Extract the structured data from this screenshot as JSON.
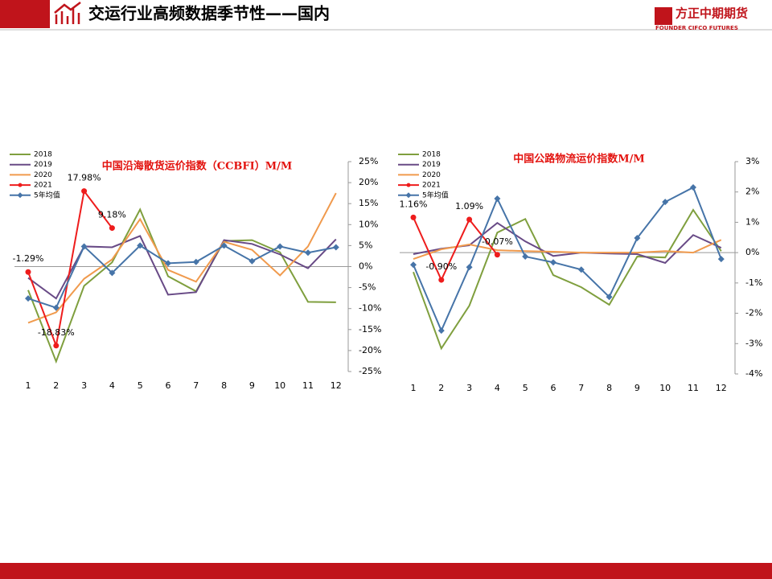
{
  "header": {
    "title": "交运行业高频数据季节性——国内",
    "logo_cn": "方正中期期货",
    "logo_en": "FOUNDER CIFCO FUTURES"
  },
  "chart_data": [
    {
      "type": "line",
      "title": "中国沿海散货运价指数（CCBFI）M/M",
      "categories": [
        "1",
        "2",
        "3",
        "4",
        "5",
        "6",
        "7",
        "8",
        "9",
        "10",
        "11",
        "12"
      ],
      "ylim": [
        -25,
        25
      ],
      "yticks": [
        {
          "value": 25,
          "label": "25%"
        },
        {
          "value": 20,
          "label": "20%"
        },
        {
          "value": 15,
          "label": "15%"
        },
        {
          "value": 10,
          "label": "10%"
        },
        {
          "value": 5,
          "label": "5%"
        },
        {
          "value": 0,
          "label": "0%"
        },
        {
          "value": -5,
          "label": "-5%"
        },
        {
          "value": -10,
          "label": "-10%"
        },
        {
          "value": -15,
          "label": "-15%"
        },
        {
          "value": -20,
          "label": "-20%"
        },
        {
          "value": -25,
          "label": "-25%"
        }
      ],
      "legend": "top-left",
      "series": [
        {
          "name": "2018",
          "color": "#7f9f3e",
          "values": [
            -5.6,
            -22.6,
            -4.6,
            1.0,
            13.6,
            -2.3,
            -5.9,
            6.1,
            6.3,
            3.4,
            -8.4,
            -8.5
          ]
        },
        {
          "name": "2019",
          "color": "#684a86",
          "values": [
            -2.7,
            -7.6,
            4.8,
            4.6,
            7.3,
            -6.7,
            -6.1,
            6.3,
            5.4,
            2.9,
            -0.4,
            6.5
          ]
        },
        {
          "name": "2020",
          "color": "#f09a4d",
          "values": [
            -13.4,
            -10.9,
            -2.9,
            1.7,
            11.3,
            -0.8,
            -3.6,
            5.9,
            4.0,
            -2.1,
            4.8,
            17.5
          ]
        },
        {
          "name": "2021",
          "color": "#ee1c1c",
          "marker": "circle",
          "values": [
            -1.29,
            -18.83,
            17.98,
            9.18,
            null,
            null,
            null,
            null,
            null,
            null,
            null,
            null
          ],
          "value_labels": [
            "-1.29%",
            "-18.83%",
            "17.98%",
            "9.18%",
            null,
            null,
            null,
            null,
            null,
            null,
            null,
            null
          ]
        },
        {
          "name": "5年均值",
          "color": "#4674a8",
          "marker": "diamond",
          "values": [
            -7.6,
            -9.8,
            4.8,
            -1.5,
            5.0,
            0.8,
            1.1,
            5.0,
            1.3,
            4.8,
            3.3,
            4.6
          ]
        }
      ]
    },
    {
      "type": "line",
      "title": "中国公路物流运价指数M/M",
      "categories": [
        "1",
        "2",
        "3",
        "4",
        "5",
        "6",
        "7",
        "8",
        "9",
        "10",
        "11",
        "12"
      ],
      "ylim": [
        -4,
        3
      ],
      "yticks": [
        {
          "value": 3,
          "label": "3%"
        },
        {
          "value": 2,
          "label": "2%"
        },
        {
          "value": 1,
          "label": "1%"
        },
        {
          "value": 0,
          "label": "0%"
        },
        {
          "value": -1,
          "label": "-1%"
        },
        {
          "value": -2,
          "label": "-2%"
        },
        {
          "value": -3,
          "label": "-3%"
        },
        {
          "value": -4,
          "label": "-4%"
        }
      ],
      "legend": "top-left",
      "series": [
        {
          "name": "2018",
          "color": "#7f9f3e",
          "values": [
            -0.64,
            -3.16,
            -1.75,
            0.66,
            1.11,
            -0.74,
            -1.14,
            -1.72,
            -0.13,
            -0.16,
            1.41,
            0.05
          ]
        },
        {
          "name": "2019",
          "color": "#684a86",
          "values": [
            -0.05,
            0.13,
            0.24,
            0.98,
            0.37,
            -0.11,
            0,
            -0.03,
            -0.05,
            -0.34,
            0.58,
            0.16
          ]
        },
        {
          "name": "2020",
          "color": "#f09a4d",
          "values": [
            -0.21,
            0.11,
            0.27,
            0.08,
            0.05,
            0.03,
            0,
            0,
            0,
            0.05,
            0,
            0.42
          ]
        },
        {
          "name": "2021",
          "color": "#ee1c1c",
          "marker": "circle",
          "values": [
            1.16,
            -0.9,
            1.09,
            -0.07,
            null,
            null,
            null,
            null,
            null,
            null,
            null,
            null
          ],
          "value_labels": [
            "1.16%",
            "-0.90%",
            "1.09%",
            "-0.07%",
            null,
            null,
            null,
            null,
            null,
            null,
            null,
            null
          ]
        },
        {
          "name": "5年均值",
          "color": "#4674a8",
          "marker": "diamond",
          "values": [
            -0.4,
            -2.57,
            -0.48,
            1.78,
            -0.13,
            -0.32,
            -0.56,
            -1.46,
            0.48,
            1.67,
            2.15,
            -0.21
          ]
        }
      ]
    }
  ]
}
